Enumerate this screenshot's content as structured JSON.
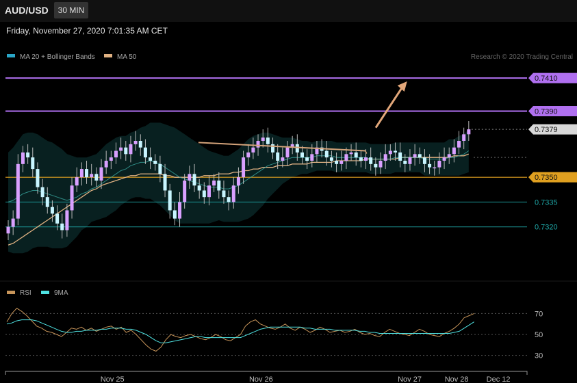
{
  "header": {
    "symbol": "AUD/USD",
    "interval": "30 MIN"
  },
  "datetime": "Friday, November 27, 2020 7:01:35 AM CET",
  "legend_main": [
    {
      "label": "MA 20 + Bollinger Bands",
      "color": "#2aa6c7"
    },
    {
      "label": "MA 50",
      "color": "#e0b182"
    }
  ],
  "copyright": "Research © 2020 Trading Central",
  "legend_rsi": [
    {
      "label": "RSI",
      "color": "#c8955a"
    },
    {
      "label": "9MA",
      "color": "#4fe3e3"
    }
  ],
  "colors": {
    "resistance": "#b070f0",
    "last_price": "#d8d8d8",
    "pivot": "#e0a020",
    "support": "#1fa8a8",
    "candle_up": "#d9a0ff",
    "candle_down": "#c8f5ff",
    "arrow": "#e2a77a"
  },
  "chart_data": {
    "type": "candlestick",
    "y_range": [
      0.73,
      0.742
    ],
    "levels": [
      {
        "label": "0.7410",
        "value": 0.741,
        "kind": "resistance",
        "boxed": true
      },
      {
        "label": "0.7390",
        "value": 0.739,
        "kind": "resistance",
        "boxed": true
      },
      {
        "label": "0.7379",
        "value": 0.7379,
        "kind": "last_price",
        "boxed": true
      },
      {
        "label": "0.7350",
        "value": 0.735,
        "kind": "pivot",
        "boxed": true
      },
      {
        "label": "0.7335",
        "value": 0.7335,
        "kind": "support",
        "boxed": false
      },
      {
        "label": "0.7320",
        "value": 0.732,
        "kind": "support",
        "boxed": false
      }
    ],
    "closes": [
      0.732,
      0.7325,
      0.7358,
      0.7365,
      0.7362,
      0.7355,
      0.7344,
      0.7338,
      0.7332,
      0.7328,
      0.7322,
      0.7318,
      0.733,
      0.7345,
      0.735,
      0.7355,
      0.735,
      0.7352,
      0.7348,
      0.7356,
      0.736,
      0.7362,
      0.7366,
      0.7368,
      0.7364,
      0.737,
      0.7372,
      0.7368,
      0.7362,
      0.736,
      0.7358,
      0.7352,
      0.7342,
      0.733,
      0.7325,
      0.7335,
      0.7348,
      0.7352,
      0.7345,
      0.7342,
      0.7338,
      0.7345,
      0.7348,
      0.7342,
      0.7338,
      0.7335,
      0.7345,
      0.735,
      0.7362,
      0.7365,
      0.7368,
      0.7372,
      0.7374,
      0.737,
      0.7365,
      0.736,
      0.7362,
      0.7368,
      0.737,
      0.7365,
      0.7362,
      0.736,
      0.7364,
      0.7368,
      0.7366,
      0.7362,
      0.736,
      0.7358,
      0.736,
      0.7364,
      0.7365,
      0.7362,
      0.736,
      0.7362,
      0.7358,
      0.7356,
      0.736,
      0.7364,
      0.7366,
      0.7365,
      0.736,
      0.7358,
      0.7362,
      0.7364,
      0.7362,
      0.7358,
      0.7356,
      0.7356,
      0.736,
      0.7362,
      0.7364,
      0.7368,
      0.7372,
      0.7376,
      0.7379
    ],
    "ma20": [
      0.7335,
      0.7336,
      0.7338,
      0.734,
      0.7341,
      0.7342,
      0.7342,
      0.7341,
      0.734,
      0.7339,
      0.7338,
      0.7337,
      0.7336,
      0.7337,
      0.7338,
      0.734,
      0.7341,
      0.7343,
      0.7344,
      0.7346,
      0.7348,
      0.735,
      0.7352,
      0.7354,
      0.7355,
      0.7357,
      0.7358,
      0.7359,
      0.7359,
      0.736,
      0.7359,
      0.7358,
      0.7356,
      0.7354,
      0.7352,
      0.735,
      0.7349,
      0.7348,
      0.7347,
      0.7346,
      0.7345,
      0.7344,
      0.7344,
      0.7344,
      0.7343,
      0.7343,
      0.7344,
      0.7345,
      0.7347,
      0.7349,
      0.7351,
      0.7353,
      0.7355,
      0.7357,
      0.7358,
      0.7359,
      0.736,
      0.7361,
      0.7362,
      0.7362,
      0.7362,
      0.7362,
      0.7362,
      0.7363,
      0.7363,
      0.7363,
      0.7363,
      0.7362,
      0.7362,
      0.7362,
      0.7362,
      0.7362,
      0.7362,
      0.7362,
      0.7361,
      0.7361,
      0.7361,
      0.7361,
      0.7361,
      0.7362,
      0.7362,
      0.7362,
      0.7362,
      0.7362,
      0.7362,
      0.7361,
      0.7361,
      0.7361,
      0.7361,
      0.7361,
      0.7362,
      0.7362,
      0.7363,
      0.7364,
      0.7366
    ],
    "ma50": [
      0.7309,
      0.731,
      0.7312,
      0.7314,
      0.7316,
      0.7318,
      0.732,
      0.7322,
      0.7324,
      0.7326,
      0.7328,
      0.733,
      0.7332,
      0.7334,
      0.7336,
      0.7338,
      0.734,
      0.7342,
      0.7343,
      0.7345,
      0.7346,
      0.7347,
      0.7348,
      0.7349,
      0.735,
      0.7351,
      0.7351,
      0.7352,
      0.7352,
      0.7352,
      0.7352,
      0.7352,
      0.7351,
      0.7351,
      0.735,
      0.735,
      0.735,
      0.735,
      0.735,
      0.735,
      0.7351,
      0.7351,
      0.7351,
      0.7352,
      0.7352,
      0.7352,
      0.7353,
      0.7353,
      0.7354,
      0.7354,
      0.7355,
      0.7355,
      0.7356,
      0.7356,
      0.7356,
      0.7357,
      0.7357,
      0.7357,
      0.7358,
      0.7358,
      0.7358,
      0.7358,
      0.7359,
      0.7359,
      0.7359,
      0.7359,
      0.7359,
      0.736,
      0.736,
      0.736,
      0.736,
      0.736,
      0.736,
      0.7361,
      0.7361,
      0.7361,
      0.7361,
      0.7361,
      0.7361,
      0.7361,
      0.7362,
      0.7362,
      0.7362,
      0.7362,
      0.7362,
      0.7362,
      0.7362,
      0.7362,
      0.7362,
      0.7362,
      0.7362,
      0.7363,
      0.7363,
      0.7363,
      0.7364
    ],
    "band_width": [
      0.003,
      0.0032,
      0.0034,
      0.0036,
      0.0036,
      0.0035,
      0.0034,
      0.0033,
      0.0032,
      0.0032,
      0.0031,
      0.003,
      0.0028,
      0.0026,
      0.0024,
      0.0022,
      0.0021,
      0.002,
      0.002,
      0.0021,
      0.0022,
      0.0022,
      0.0022,
      0.0021,
      0.002,
      0.002,
      0.002,
      0.0021,
      0.0022,
      0.0023,
      0.0024,
      0.0025,
      0.0026,
      0.0027,
      0.0028,
      0.0028,
      0.0027,
      0.0026,
      0.0025,
      0.0024,
      0.0023,
      0.0022,
      0.0021,
      0.002,
      0.002,
      0.002,
      0.0021,
      0.0022,
      0.0023,
      0.0024,
      0.0024,
      0.0023,
      0.0022,
      0.002,
      0.0018,
      0.0016,
      0.0014,
      0.0013,
      0.0012,
      0.0011,
      0.001,
      0.001,
      0.0009,
      0.0009,
      0.0009,
      0.0009,
      0.0009,
      0.0009,
      0.0009,
      0.0009,
      0.0009,
      0.0009,
      0.0009,
      0.0009,
      0.0009,
      0.0009,
      0.0009,
      0.0009,
      0.0009,
      0.0009,
      0.0009,
      0.0009,
      0.0009,
      0.0009,
      0.0009,
      0.001,
      0.001,
      0.001,
      0.001,
      0.001,
      0.0011,
      0.0011,
      0.0012,
      0.0012,
      0.0013
    ],
    "trendline": [
      [
        0.37,
        0.7371
      ],
      [
        0.69,
        0.7366
      ]
    ],
    "arrow": {
      "from": [
        0.71,
        0.738
      ],
      "to": [
        0.77,
        0.7408
      ]
    },
    "rsi": {
      "y_ticks": [
        70,
        50,
        30
      ],
      "y_range": [
        20,
        82
      ],
      "rsi": [
        62,
        70,
        75,
        72,
        68,
        63,
        58,
        56,
        53,
        52,
        50,
        48,
        52,
        56,
        55,
        57,
        54,
        56,
        53,
        55,
        57,
        58,
        55,
        57,
        52,
        54,
        50,
        45,
        40,
        36,
        34,
        38,
        45,
        50,
        48,
        47,
        49,
        50,
        48,
        46,
        45,
        47,
        50,
        48,
        45,
        44,
        47,
        50,
        58,
        62,
        64,
        60,
        58,
        56,
        55,
        57,
        60,
        56,
        54,
        57,
        55,
        52,
        54,
        57,
        55,
        52,
        53,
        54,
        52,
        53,
        55,
        52,
        50,
        51,
        49,
        48,
        52,
        55,
        53,
        51,
        50,
        49,
        52,
        55,
        53,
        50,
        49,
        48,
        51,
        53,
        56,
        60,
        66,
        68,
        70
      ],
      "ma9": [
        60,
        61,
        63,
        64,
        64,
        64,
        63,
        61,
        59,
        57,
        55,
        53,
        52,
        52,
        53,
        53,
        54,
        54,
        54,
        55,
        55,
        56,
        56,
        56,
        55,
        55,
        54,
        52,
        50,
        47,
        44,
        42,
        42,
        43,
        44,
        45,
        46,
        47,
        48,
        48,
        47,
        47,
        47,
        47,
        47,
        47,
        47,
        47,
        49,
        51,
        53,
        55,
        56,
        57,
        57,
        57,
        57,
        57,
        57,
        57,
        56,
        56,
        55,
        55,
        55,
        55,
        54,
        54,
        54,
        54,
        54,
        53,
        53,
        52,
        52,
        51,
        51,
        51,
        51,
        51,
        51,
        51,
        51,
        51,
        51,
        51,
        51,
        51,
        51,
        51,
        52,
        53,
        56,
        59,
        62
      ]
    },
    "x_ticks": [
      {
        "label": "Nov 25",
        "pos": 0.205
      },
      {
        "label": "Nov 26",
        "pos": 0.49
      },
      {
        "label": "Nov 27",
        "pos": 0.775
      },
      {
        "label": "Nov 28",
        "pos": 0.865
      },
      {
        "label": "Dec 12",
        "pos": 0.945
      }
    ]
  }
}
